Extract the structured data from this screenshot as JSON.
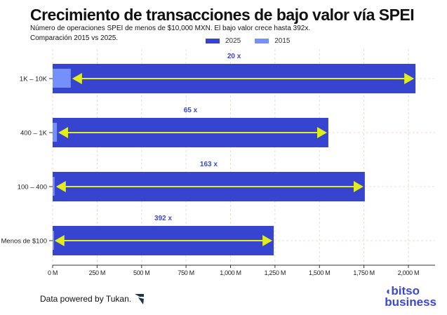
{
  "title": "Crecimiento de transacciones de bajo valor vía SPEI",
  "subtitle_line1": "Número de operaciones SPEI de menos de $10,000 MXN. El bajo valor crece hasta 392x.",
  "subtitle_line2": "Comparación 2015 vs 2025.",
  "footer": {
    "credit": "Data powered by Tukan.",
    "brand_line1": "bitso",
    "brand_line2": "business"
  },
  "colors": {
    "s2025": "#3644cf",
    "s2015": "#7590fb",
    "arrow": "#e2ee1c",
    "label": "#3b48d6"
  },
  "chart_data": {
    "type": "bar",
    "orientation": "horizontal",
    "categories": [
      "1K – 10K",
      "400 – 1K",
      "100 – 400",
      "Menos de $100"
    ],
    "series": [
      {
        "name": "2025",
        "values": [
          2040,
          1550,
          1755,
          1243
        ]
      },
      {
        "name": "2015",
        "values": [
          102,
          24,
          11,
          3
        ]
      }
    ],
    "annotations": [
      "20 x",
      "65 x",
      "163 x",
      "392 x"
    ],
    "xlim": [
      0,
      2150
    ],
    "xticks": [
      0,
      250,
      500,
      750,
      1000,
      1250,
      1500,
      1750,
      2000
    ],
    "xtick_labels": [
      "0 M",
      "250 M",
      "500 M",
      "750 M",
      "1,000 M",
      "1,250 M",
      "1,500 M",
      "1,750 M",
      "2,000 M"
    ],
    "grid": "vertical dashed",
    "legend": "top-center"
  }
}
